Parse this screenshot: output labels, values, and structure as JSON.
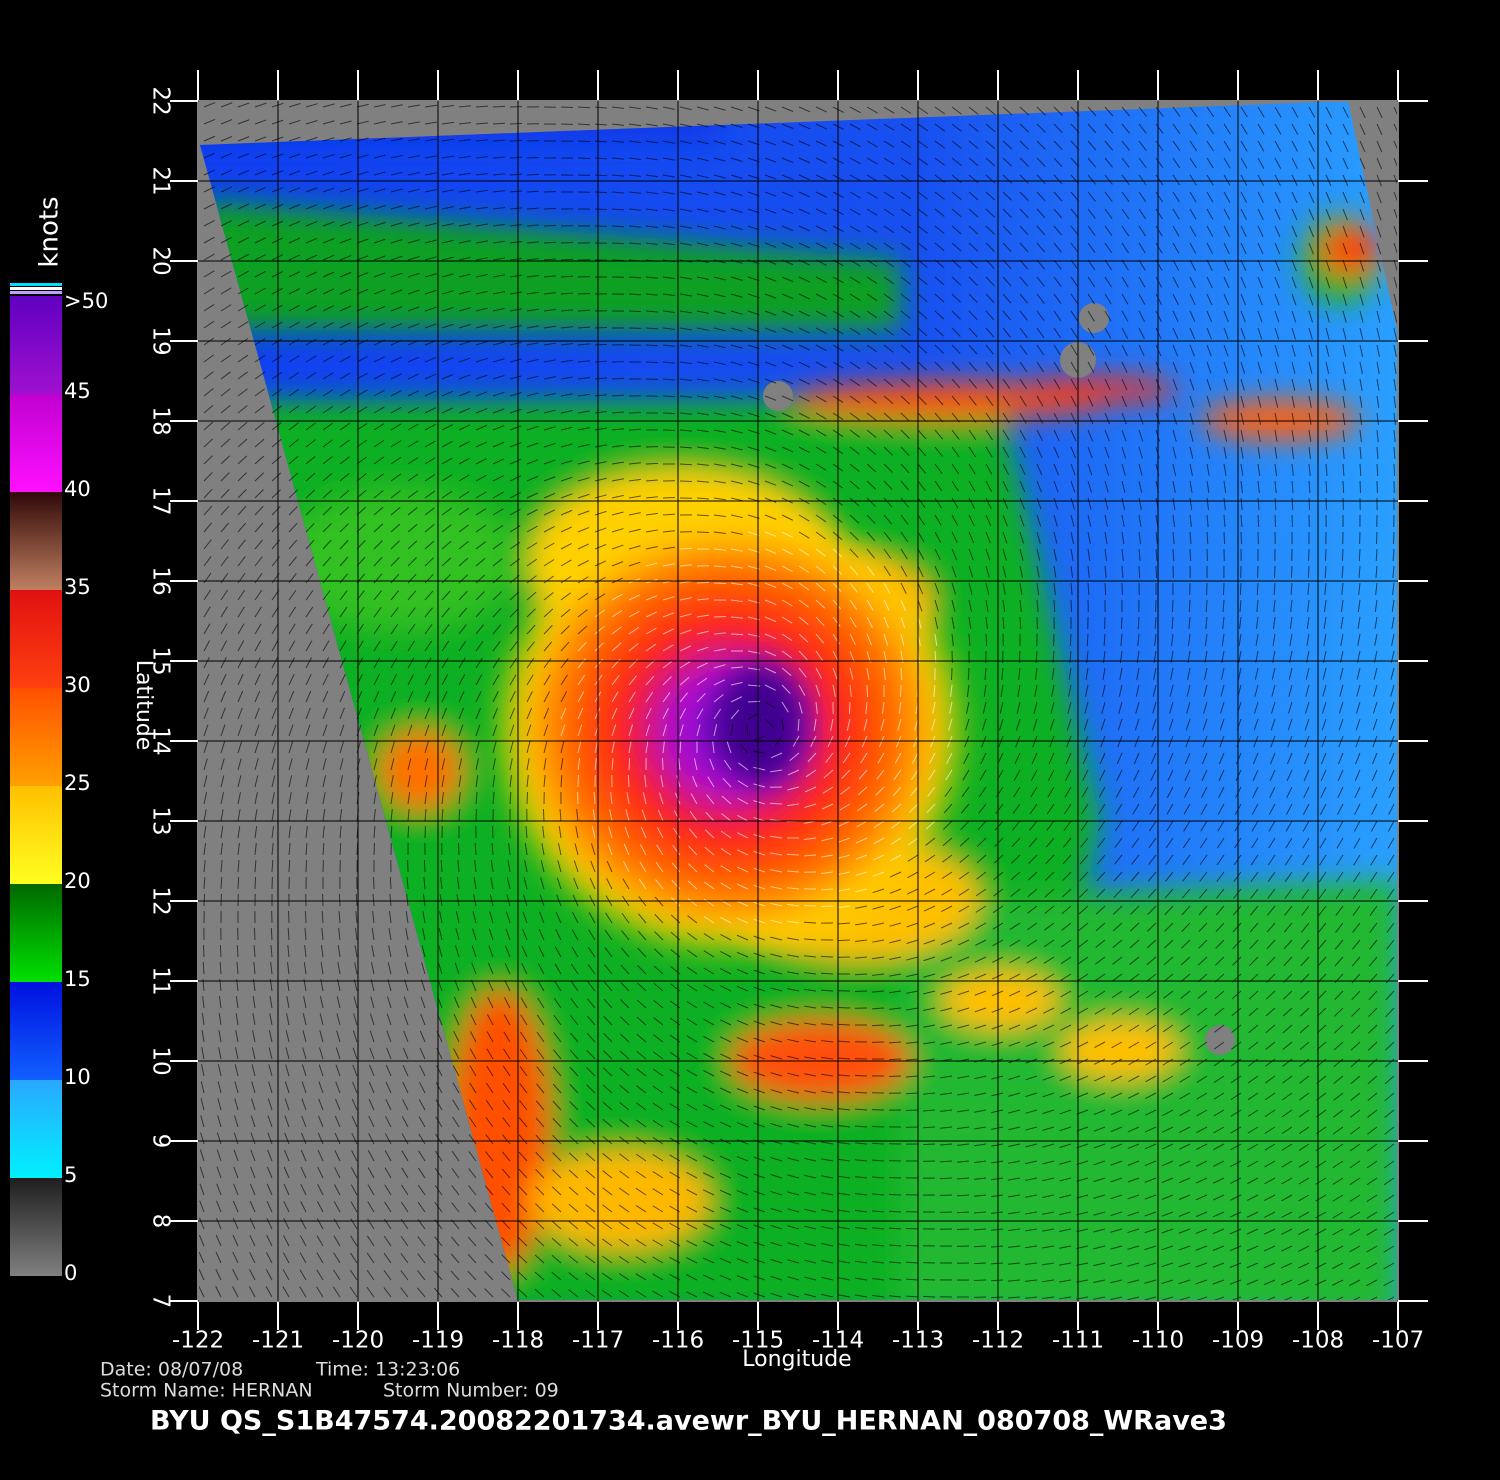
{
  "map": {
    "x_label": "Longitude",
    "y_label": "Latitude",
    "xlim": [
      -122,
      -107
    ],
    "xticks": [
      -122,
      -121,
      -120,
      -119,
      -118,
      -117,
      -116,
      -115,
      -114,
      -113,
      -112,
      -111,
      -110,
      -109,
      -108,
      -107
    ],
    "ylim": [
      7,
      22
    ],
    "yticks": [
      7,
      8,
      9,
      10,
      11,
      12,
      13,
      14,
      15,
      16,
      17,
      18,
      19,
      20,
      21,
      22
    ],
    "grid": true,
    "colorbar": {
      "title": "knots",
      "range": [
        0,
        50
      ],
      "ticks": [
        0,
        5,
        10,
        15,
        20,
        25,
        30,
        35,
        40,
        45,
        {
          "value": 50,
          "label": ">50"
        }
      ],
      "colors": [
        [
          "#808080",
          "#1e1e1e"
        ],
        [
          "#00f0ff",
          "#2aa8ff"
        ],
        [
          "#1060ff",
          "#0010e0"
        ],
        [
          "#00e000",
          "#006800"
        ],
        [
          "#ffff20",
          "#ffc000"
        ],
        [
          "#ffa000",
          "#ff5000"
        ],
        [
          "#ff4010",
          "#e01010"
        ],
        [
          "#c08060",
          "#300808"
        ],
        [
          "#ff10ff",
          "#c000d0"
        ],
        [
          "#a010d0",
          "#6000c0"
        ]
      ]
    },
    "info": {
      "date": "Date: 08/07/08",
      "time": "Time: 13:23:06",
      "storm_name": "Storm  Name: HERNAN",
      "storm_number": "Storm  Number: 09"
    },
    "footer": "BYU  QS_S1B47574.20082201734.avewr_BYU_HERNAN_080708_WRave3"
  }
}
